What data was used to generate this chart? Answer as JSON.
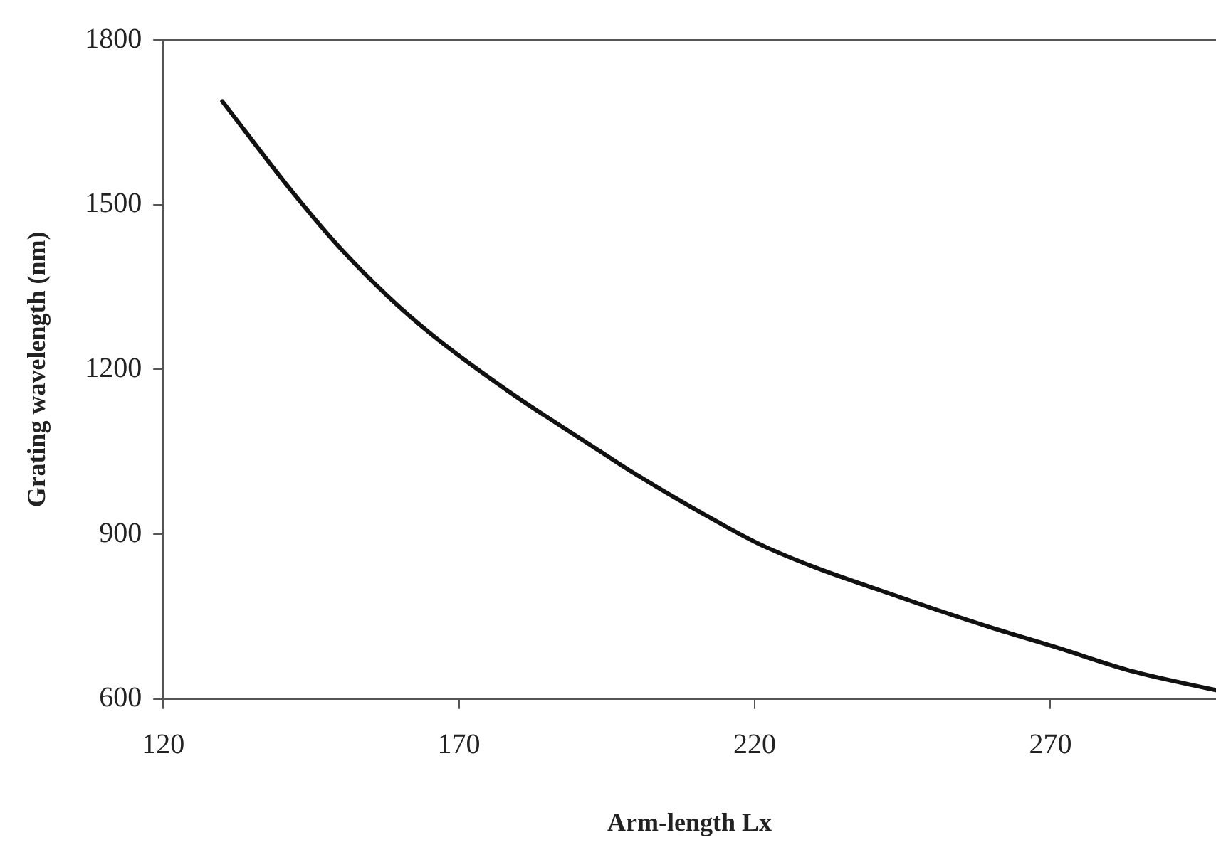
{
  "chart_data": {
    "type": "line",
    "xlabel": "Arm-length Lx",
    "ylabel": "Grating wavelength (nm)",
    "series": [
      {
        "color": "#111111",
        "x": [
          130,
          142,
          150,
          162,
          178,
          192,
          199,
          210,
          222,
          246,
          260,
          271,
          284,
          298
        ],
        "values": [
          1688,
          1521,
          1420,
          1294,
          1163,
          1064,
          1015,
          945,
          876,
          780,
          730,
          694,
          650,
          616
        ]
      }
    ],
    "xlim": [
      120,
      298
    ],
    "xticks": [
      120,
      170,
      220,
      270
    ],
    "ylim": [
      600,
      1800
    ],
    "yticks": [
      600,
      900,
      1200,
      1500,
      1800
    ],
    "grid": false,
    "legend": false,
    "marker": "none",
    "line_style": "solid"
  }
}
